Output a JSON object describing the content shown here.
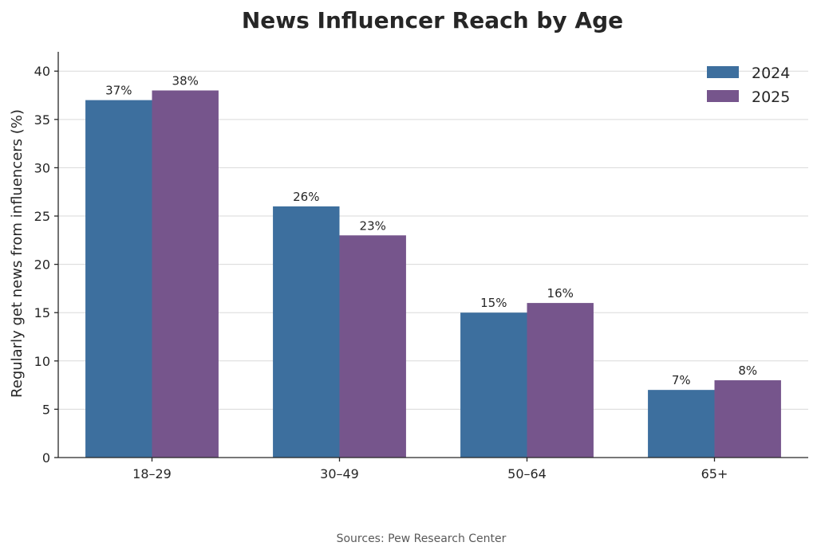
{
  "chart_data": {
    "type": "bar",
    "title": "News Influencer Reach by Age",
    "xlabel": "",
    "ylabel": "Regularly get news from influencers (%)",
    "categories": [
      "18–29",
      "30–49",
      "50–64",
      "65+"
    ],
    "series": [
      {
        "name": "2024",
        "values": [
          37,
          26,
          15,
          7
        ],
        "labels": [
          "37%",
          "26%",
          "15%",
          "7%"
        ],
        "color": "#3d6f9e"
      },
      {
        "name": "2025",
        "values": [
          38,
          23,
          16,
          8
        ],
        "labels": [
          "38%",
          "23%",
          "16%",
          "8%"
        ],
        "color": "#76558c"
      }
    ],
    "ylim": [
      0,
      42
    ],
    "yticks": [
      0,
      5,
      10,
      15,
      20,
      25,
      30,
      35,
      40
    ],
    "grid": "horizontal",
    "legend_position": "top-right",
    "source": "Sources: Pew Research Center"
  }
}
